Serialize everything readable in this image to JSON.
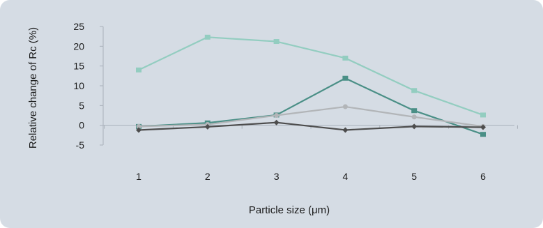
{
  "chart_data": {
    "type": "line",
    "title": "",
    "xlabel": "Particle size (μm)",
    "ylabel": "Relative change of Rc (%)",
    "x": [
      1,
      2,
      3,
      4,
      5,
      6
    ],
    "categories": [
      "1",
      "2",
      "3",
      "4",
      "5",
      "6"
    ],
    "yticks": [
      "25",
      "20",
      "15",
      "10",
      "5",
      "0",
      "-5"
    ],
    "ylim": [
      -5,
      25
    ],
    "grid": false,
    "legend": "none",
    "series": [
      {
        "values": [
          14,
          22.3,
          21.2,
          17,
          8.8,
          2.6
        ],
        "color": "#93cdc0",
        "marker": "square"
      },
      {
        "values": [
          -0.3,
          0.6,
          2.6,
          11.9,
          3.7,
          -2.3
        ],
        "color": "#4a8f86",
        "marker": "square"
      },
      {
        "values": [
          -0.3,
          0.2,
          2.5,
          4.7,
          2.1,
          -0.3
        ],
        "color": "#b2b5b8",
        "marker": "circle"
      },
      {
        "values": [
          -1.2,
          -0.4,
          0.7,
          -1.2,
          -0.3,
          -0.5
        ],
        "color": "#4d4d4d",
        "marker": "diamond"
      }
    ]
  }
}
